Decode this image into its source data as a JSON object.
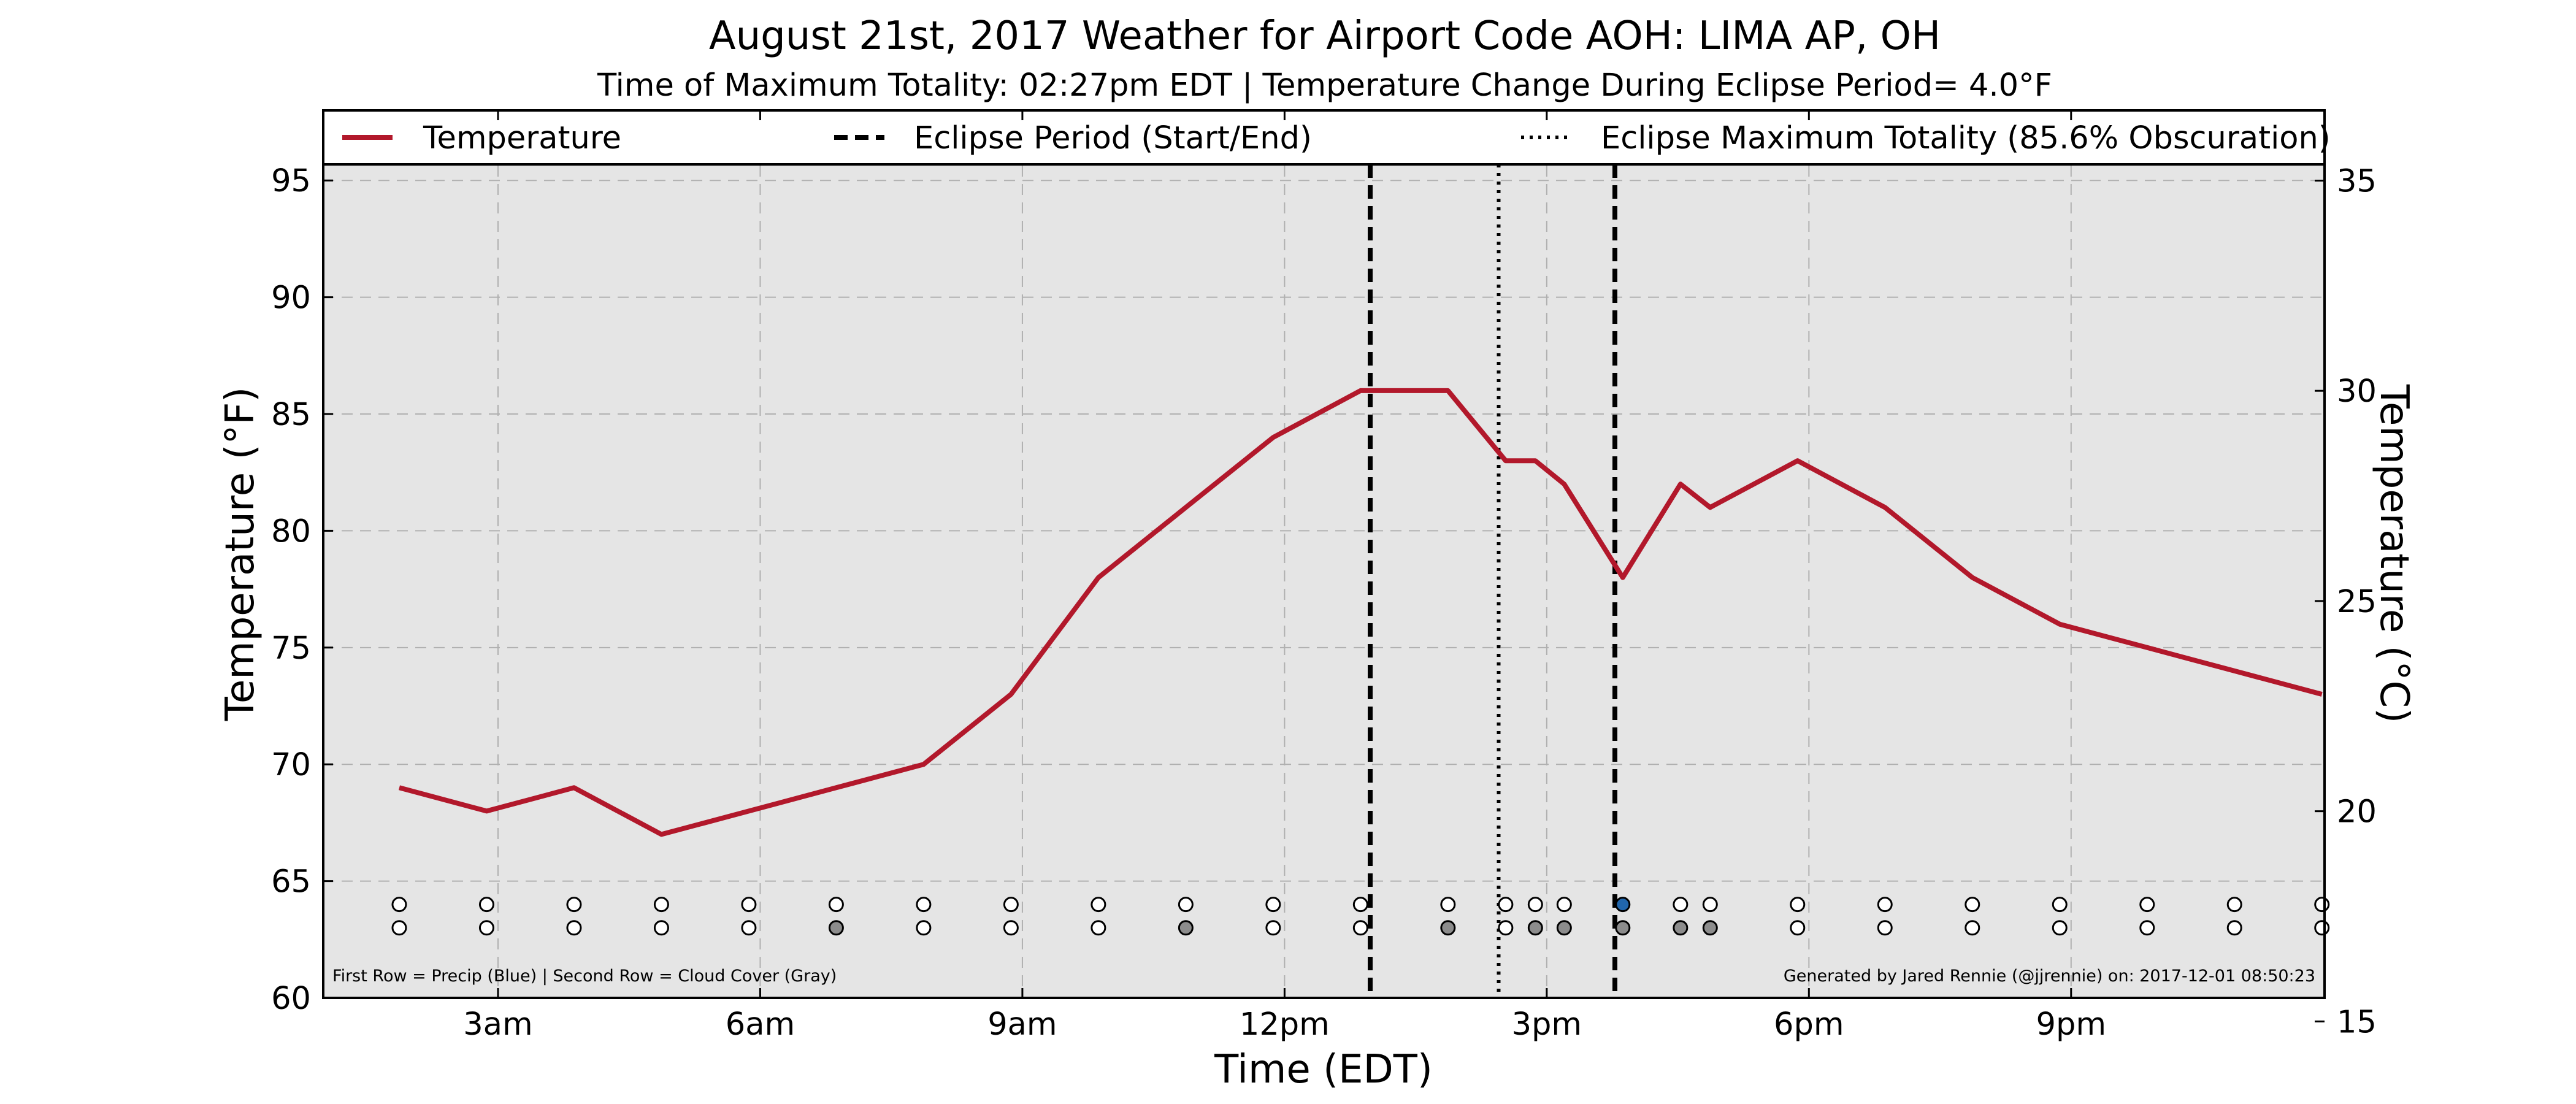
{
  "chart_data": {
    "type": "line",
    "title": "August 21st, 2017 Weather for Airport Code AOH: LIMA AP, OH",
    "subtitle": "Time of Maximum Totality: 02:27pm EDT | Temperature Change During Eclipse Period= 4.0°F",
    "xlabel": "Time (EDT)",
    "ylabel": "Temperature (°F)",
    "y2label": "Temperature (°C)",
    "xlim": [
      1.0,
      23.9
    ],
    "ylim": [
      60,
      98
    ],
    "y2lim": [
      15.56,
      36.67
    ],
    "x_ticks": [
      {
        "x": 3,
        "label": "3am"
      },
      {
        "x": 6,
        "label": "6am"
      },
      {
        "x": 9,
        "label": "9am"
      },
      {
        "x": 12,
        "label": "12pm"
      },
      {
        "x": 15,
        "label": "3pm"
      },
      {
        "x": 18,
        "label": "6pm"
      },
      {
        "x": 21,
        "label": "9pm"
      }
    ],
    "y_ticks": [
      60,
      65,
      70,
      75,
      80,
      85,
      90,
      95
    ],
    "y2_ticks": [
      15,
      20,
      25,
      30,
      35
    ],
    "grid": true,
    "legend_position": "top",
    "legend": [
      {
        "label": "Temperature",
        "style": "solid",
        "color": "#b2182b"
      },
      {
        "label": "Eclipse Period (Start/End)",
        "style": "dashed",
        "color": "#000000"
      },
      {
        "label": "Eclipse Maximum Totality (85.6% Obscuration)",
        "style": "dotted",
        "color": "#000000"
      }
    ],
    "series": [
      {
        "name": "Temperature",
        "color": "#b2182b",
        "x": [
          1.87,
          2.87,
          3.87,
          4.87,
          5.87,
          6.87,
          7.87,
          8.87,
          9.87,
          10.87,
          11.87,
          12.87,
          13.87,
          14.53,
          14.87,
          15.2,
          15.87,
          16.53,
          16.87,
          17.87,
          18.87,
          19.87,
          20.87,
          21.87,
          22.87,
          23.87
        ],
        "y": [
          69,
          68,
          69,
          67,
          68,
          69,
          70,
          73,
          78,
          81,
          84,
          86,
          86,
          83,
          83,
          82,
          78,
          82,
          81,
          83,
          81,
          78,
          76,
          75,
          74,
          73
        ]
      }
    ],
    "eclipse_start": 12.98,
    "eclipse_end": 15.78,
    "max_totality": 14.45,
    "observations": {
      "x": [
        1.87,
        2.87,
        3.87,
        4.87,
        5.87,
        6.87,
        7.87,
        8.87,
        9.87,
        10.87,
        11.87,
        12.87,
        13.87,
        14.53,
        14.87,
        15.2,
        15.87,
        16.53,
        16.87,
        17.87,
        18.87,
        19.87,
        20.87,
        21.87,
        22.87,
        23.87
      ],
      "precip": [
        0,
        0,
        0,
        0,
        0,
        0,
        0,
        0,
        0,
        0,
        0,
        0,
        0,
        0,
        0,
        0,
        1,
        0,
        0,
        0,
        0,
        0,
        0,
        0,
        0,
        0
      ],
      "cloud": [
        0,
        0,
        0,
        0,
        0,
        1,
        0,
        0,
        0,
        1,
        0,
        0,
        1,
        0,
        1,
        1,
        1,
        1,
        1,
        0,
        0,
        0,
        0,
        0,
        0,
        0
      ],
      "precip_y": 64,
      "cloud_y": 63,
      "colors": {
        "none": "#ffffff",
        "precip": "#2166ac",
        "cloud": "#8c8c8c"
      }
    },
    "notes": {
      "left": "First Row = Precip (Blue) | Second Row = Cloud Cover (Gray)",
      "right": "Generated by Jared Rennie (@jjrennie) on: 2017-12-01 08:50:23"
    },
    "colors": {
      "plot_background": "#e5e5e5",
      "grid": "#b0b0b0"
    }
  }
}
